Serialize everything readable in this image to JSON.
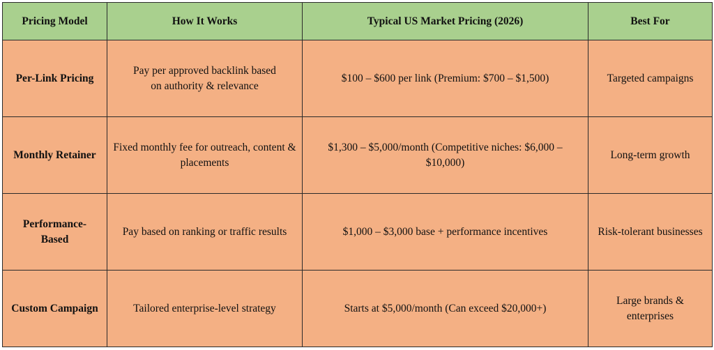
{
  "colors": {
    "header_bg": "#A9D08E",
    "body_bg": "#F4B084"
  },
  "headers": [
    "Pricing Model",
    "How It Works",
    "Typical US Market Pricing (2026)",
    "Best For"
  ],
  "rows": [
    {
      "model": "Per-Link Pricing",
      "how": "Pay per approved backlink based on authority & relevance",
      "pricing": "$100 – $600 per link (Premium: $700 – $1,500)",
      "best_for": "Targeted campaigns"
    },
    {
      "model": "Monthly Retainer",
      "how": "Fixed monthly fee for outreach, content & placements",
      "pricing": "$1,300 – $5,000/month (Competitive niches: $6,000 – $10,000)",
      "best_for": "Long-term growth"
    },
    {
      "model": "Performance-Based",
      "how": "Pay based on ranking or traffic results",
      "pricing": "$1,000 – $3,000 base + performance incentives",
      "best_for": "Risk-tolerant businesses"
    },
    {
      "model": "Custom Campaign",
      "how": "Tailored enterprise-level strategy",
      "pricing": "Starts at $5,000/month (Can exceed $20,000+)",
      "best_for": "Large brands & enterprises"
    }
  ]
}
